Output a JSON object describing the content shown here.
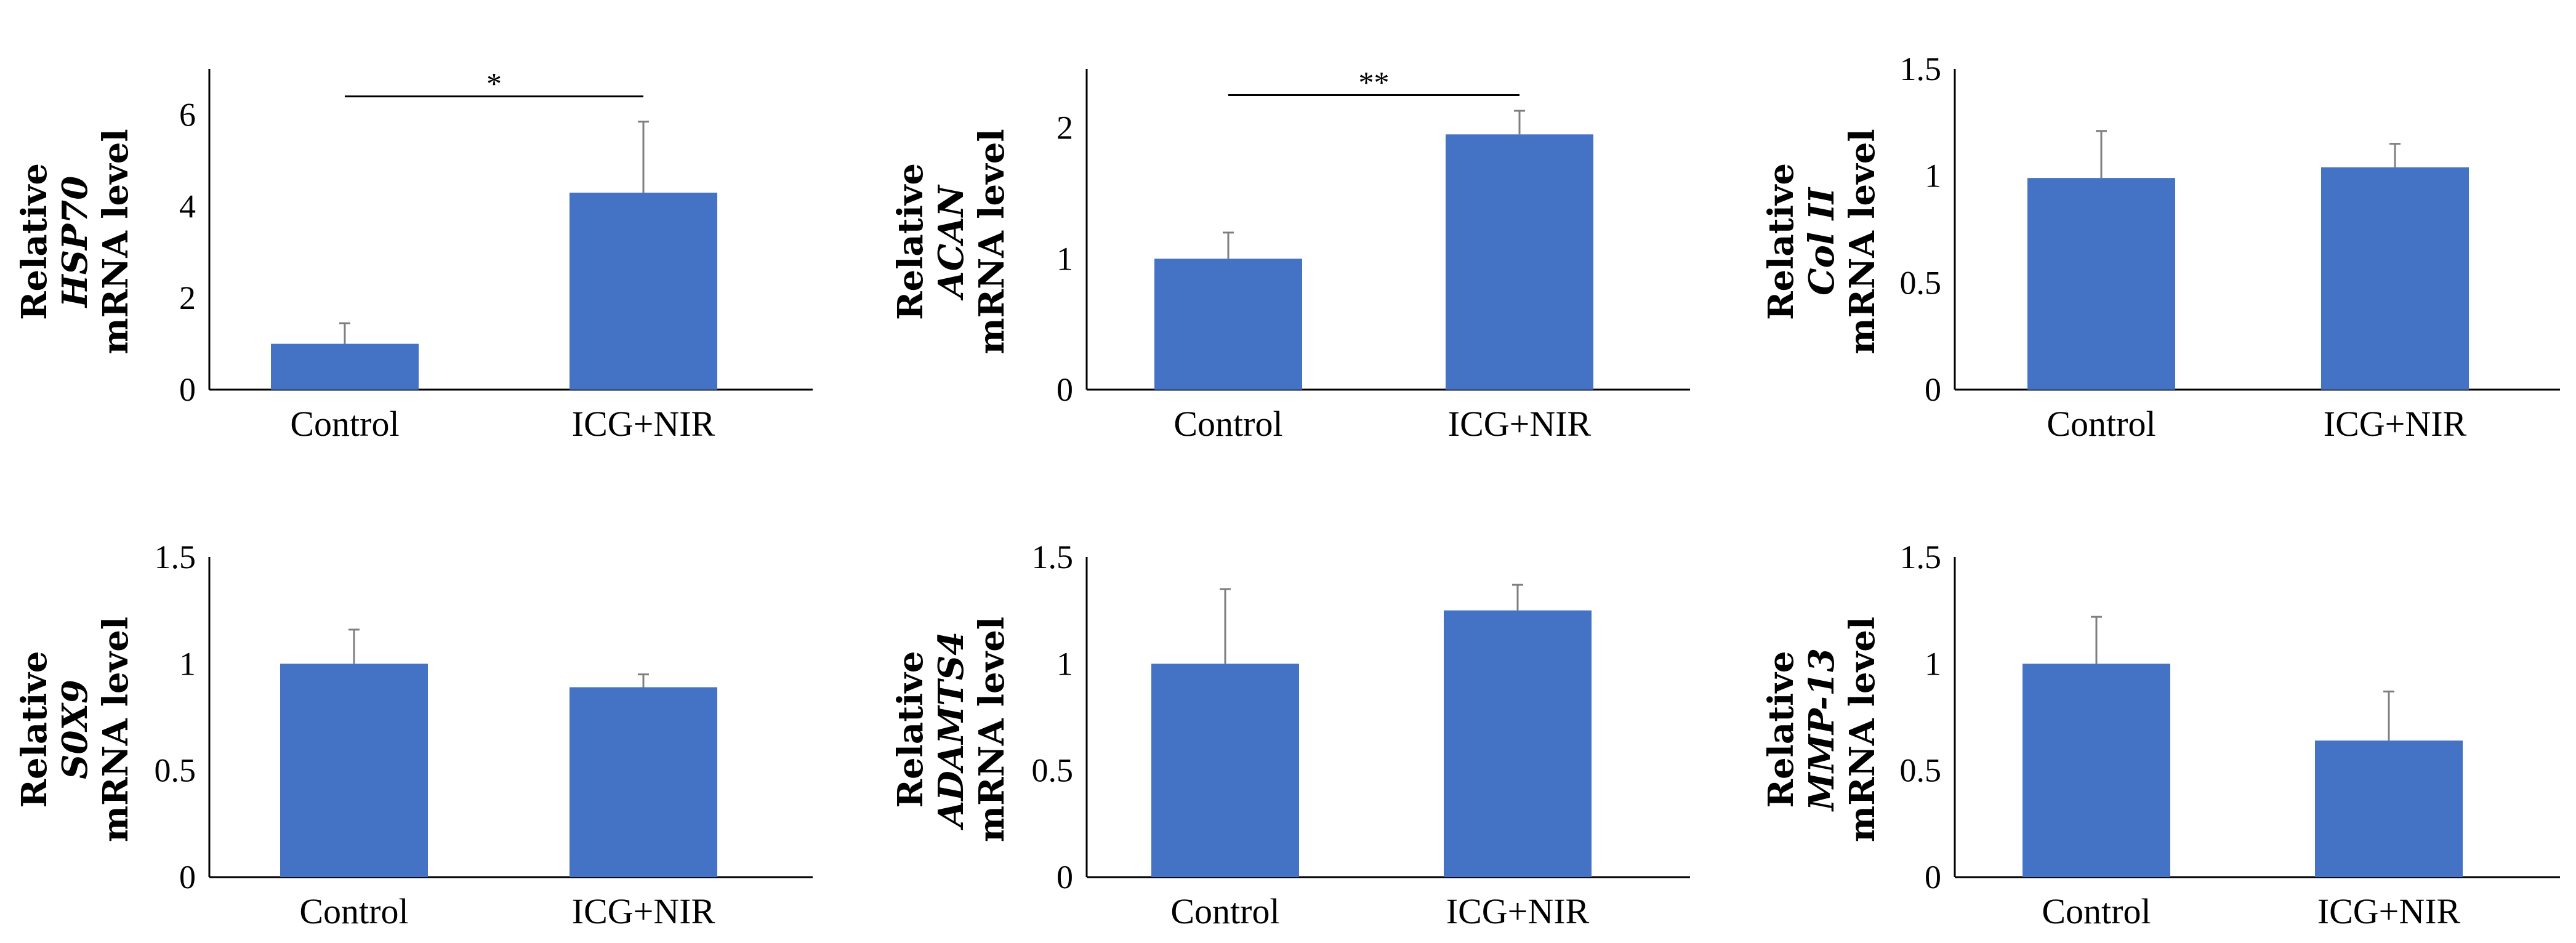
{
  "figure": {
    "bar_color": "#4472c4",
    "axis_color": "#000000",
    "error_bar_color": "#7f7f7f"
  },
  "chart_data": [
    {
      "type": "bar",
      "ylabel": [
        "Relative",
        "HSP70",
        "mRNA level"
      ],
      "categories": [
        "Control",
        "ICG+NIR"
      ],
      "values": [
        1.0,
        4.3
      ],
      "errors": [
        0.45,
        1.55
      ],
      "ylim": [
        0,
        7
      ],
      "yticks": [
        0,
        2,
        4,
        6
      ],
      "ytick_labels": [
        "0",
        "2",
        "4",
        "6"
      ],
      "significance": {
        "label": "*",
        "y": 6.4
      }
    },
    {
      "type": "bar",
      "ylabel": [
        "Relative",
        "ACAN",
        "mRNA level"
      ],
      "categories": [
        "Control",
        "ICG+NIR"
      ],
      "values": [
        1.0,
        1.95
      ],
      "errors": [
        0.2,
        0.18
      ],
      "ylim": [
        0,
        2.45
      ],
      "yticks": [
        0,
        1,
        2
      ],
      "ytick_labels": [
        "0",
        "1",
        "2"
      ],
      "significance": {
        "label": "**",
        "y": 2.25
      }
    },
    {
      "type": "bar",
      "ylabel": [
        "Relative",
        "Col II",
        "mRNA level"
      ],
      "categories": [
        "Control",
        "ICG+NIR"
      ],
      "values": [
        0.99,
        1.04
      ],
      "errors": [
        0.22,
        0.11
      ],
      "ylim": [
        0,
        1.5
      ],
      "yticks": [
        0,
        0.5,
        1,
        1.5
      ],
      "ytick_labels": [
        "0",
        "0.5",
        "1",
        "1.5"
      ]
    },
    {
      "type": "bar",
      "ylabel": [
        "Relative",
        "S0X9",
        "mRNA level"
      ],
      "categories": [
        "Control",
        "ICG+NIR"
      ],
      "values": [
        1.0,
        0.89
      ],
      "errors": [
        0.16,
        0.06
      ],
      "ylim": [
        0,
        1.5
      ],
      "yticks": [
        0,
        0.5,
        1,
        1.5
      ],
      "ytick_labels": [
        "0",
        "0.5",
        "1",
        "1.5"
      ]
    },
    {
      "type": "bar",
      "ylabel": [
        "Relative",
        "ADAMTS4",
        "mRNA level"
      ],
      "categories": [
        "Control",
        "ICG+NIR"
      ],
      "values": [
        1.0,
        1.25
      ],
      "errors": [
        0.35,
        0.12
      ],
      "ylim": [
        0,
        1.5
      ],
      "yticks": [
        0,
        0.5,
        1,
        1.5
      ],
      "ytick_labels": [
        "0",
        "0.5",
        "1",
        "1.5"
      ]
    },
    {
      "type": "bar",
      "ylabel": [
        "Relative",
        "MMP-13",
        "mRNA level"
      ],
      "categories": [
        "Control",
        "ICG+NIR"
      ],
      "values": [
        1.0,
        0.64
      ],
      "errors": [
        0.22,
        0.23
      ],
      "ylim": [
        0,
        1.5
      ],
      "yticks": [
        0,
        0.5,
        1,
        1.5
      ],
      "ytick_labels": [
        "0",
        "0.5",
        "1",
        "1.5"
      ]
    }
  ]
}
